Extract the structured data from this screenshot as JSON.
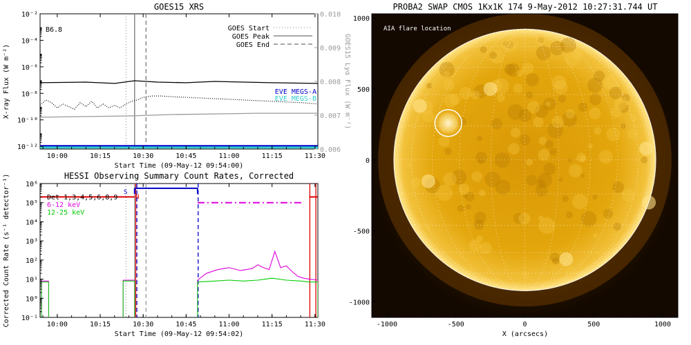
{
  "chart_data": [
    {
      "type": "line",
      "title": "GOES15 XRS",
      "xlabel": "Start Time (09-May-12 09:54:00)",
      "ylabel": "X-ray Flux (W m⁻²)",
      "ylabel_right": "GOES15 Lyα Flux (W m⁻²)",
      "x_ticks": [
        "10:00",
        "10:15",
        "10:30",
        "10:45",
        "11:00",
        "11:15",
        "11:30"
      ],
      "x_tick_minutes": [
        0,
        15,
        30,
        45,
        60,
        75,
        90
      ],
      "xlim_minutes": [
        -6,
        91
      ],
      "y_log_exponents": [
        -12,
        -10,
        -8,
        -6,
        -4,
        -2
      ],
      "y_tick_labels": [
        "10⁻¹²",
        "10⁻¹⁰",
        "10⁻⁸",
        "10⁻⁶",
        "10⁻⁴",
        "10⁻²"
      ],
      "ylim_log": [
        -12.2,
        -2
      ],
      "y_right_ticks": [
        "0.006",
        "0.007",
        "0.008",
        "0.009",
        "0.010"
      ],
      "y_right_values": [
        0.006,
        0.007,
        0.008,
        0.009,
        0.01
      ],
      "ylim_right": [
        0.006,
        0.01
      ],
      "class_label": "B6.8",
      "legend": [
        {
          "label": "GOES Start",
          "style": "dotted"
        },
        {
          "label": "GOES Peak",
          "style": "solid"
        },
        {
          "label": "GOES End",
          "style": "dashed"
        }
      ],
      "markers_minutes": {
        "start": 24,
        "peak": 27,
        "end": 31
      },
      "series": [
        {
          "name": "",
          "color": "#000000",
          "style": "solid",
          "x": [
            -6,
            10,
            20,
            27,
            35,
            45,
            55,
            65,
            75,
            91
          ],
          "log_y": [
            -7.2,
            -7.15,
            -7.25,
            -7.05,
            -7.15,
            -7.2,
            -7.1,
            -7.15,
            -7.2,
            -7.25
          ]
        },
        {
          "name": "",
          "color": "#000000",
          "style": "dotted",
          "x": [
            -6,
            -4,
            -2,
            0,
            2,
            4,
            6,
            8,
            10,
            12,
            14,
            16,
            18,
            20,
            22,
            24,
            26,
            28,
            30,
            33,
            36,
            40,
            45,
            50,
            55,
            60,
            65,
            70,
            75,
            80,
            85,
            88,
            91
          ],
          "log_y": [
            -8.9,
            -8.5,
            -8.7,
            -9.1,
            -8.8,
            -9.0,
            -9.2,
            -8.7,
            -9.0,
            -8.6,
            -9.1,
            -8.8,
            -9.1,
            -8.9,
            -9.1,
            -8.8,
            -8.6,
            -8.5,
            -8.3,
            -8.2,
            -8.2,
            -8.25,
            -8.3,
            -8.35,
            -8.4,
            -8.45,
            -8.5,
            -8.55,
            -8.6,
            -8.65,
            -8.7,
            -8.75,
            -8.8
          ]
        },
        {
          "name": "",
          "color": "#999999",
          "style": "solid",
          "x": [
            -6,
            10,
            25,
            40,
            55,
            70,
            91
          ],
          "log_y": [
            -9.8,
            -9.75,
            -9.7,
            -9.6,
            -9.55,
            -9.5,
            -9.5
          ]
        },
        {
          "name": "EVE MEGS-A",
          "color": "#0000cc",
          "style": "solid",
          "x": [
            -6,
            91
          ],
          "log_y": [
            -11.98,
            -11.98
          ]
        },
        {
          "name": "EVE MEGS-B",
          "color": "#33cccc",
          "style": "solid",
          "x": [
            -6,
            91
          ],
          "log_y": [
            -12.08,
            -12.08
          ]
        }
      ]
    },
    {
      "type": "line",
      "title": "HESSI Observing Summary Count Rates, Corrected",
      "xlabel": "Start Time (09-May-12 09:54:02)",
      "ylabel": "Corrected Count Rate (s⁻¹ detector⁻¹)",
      "x_ticks": [
        "10:00",
        "10:15",
        "10:30",
        "10:45",
        "11:00",
        "11:15",
        "11:30"
      ],
      "x_tick_minutes": [
        0,
        15,
        30,
        45,
        60,
        75,
        90
      ],
      "xlim_minutes": [
        -6,
        91
      ],
      "y_log_exponents": [
        -1,
        0,
        1,
        2,
        3,
        4,
        5,
        6
      ],
      "y_tick_labels": [
        "10⁻¹",
        "10⁰",
        "10¹",
        "10²",
        "10³",
        "10⁴",
        "10⁵",
        "10⁶"
      ],
      "ylim_log": [
        -1,
        6
      ],
      "legend": [
        {
          "label": "Det 1,3,4,5,6,8,9",
          "color": "#000000"
        },
        {
          "label": "6-12 keV",
          "color": "#dd00dd"
        },
        {
          "label": "12-25 keV",
          "color": "#00cc00"
        }
      ],
      "flags": [
        {
          "label": "S",
          "color": "#0000cc"
        },
        {
          "label": "N",
          "color": "#dd0000"
        }
      ],
      "series": [
        {
          "name": "6-12 keV",
          "color": "#dd00dd",
          "style": "solid",
          "x": [
            -5.5,
            -3,
            23,
            27,
            49,
            52,
            56,
            60,
            64,
            68,
            70,
            72,
            74,
            76,
            78,
            80,
            82,
            84,
            86,
            88,
            91
          ],
          "log_y": [
            0.9,
            0.9,
            0.95,
            0.95,
            0.95,
            1.3,
            1.5,
            1.6,
            1.45,
            1.55,
            1.75,
            1.6,
            1.5,
            2.45,
            1.6,
            1.7,
            1.4,
            1.15,
            1.05,
            1.0,
            0.95
          ],
          "gaps_after_index": [
            1,
            3
          ]
        },
        {
          "name": "12-25 keV",
          "color": "#00cc00",
          "style": "solid",
          "x": [
            -5.5,
            -3,
            23,
            27,
            49,
            55,
            60,
            65,
            70,
            75,
            80,
            85,
            88,
            91
          ],
          "log_y": [
            0.85,
            0.85,
            0.9,
            0.9,
            0.85,
            0.9,
            0.95,
            0.9,
            0.95,
            1.05,
            0.95,
            0.9,
            0.85,
            0.85
          ],
          "gaps_after_index": [
            1,
            3
          ]
        },
        {
          "name": "attenuator",
          "color": "#dd0000",
          "style": "solid",
          "x": [
            -6,
            27
          ],
          "log_y": [
            5.3,
            5.3
          ]
        },
        {
          "name": "attenuator-2",
          "color": "#dd0000",
          "style": "solid",
          "x": [
            88,
            91
          ],
          "log_y": [
            5.3,
            5.3
          ]
        },
        {
          "name": "saa",
          "color": "#0000cc",
          "style": "solid",
          "x": [
            27,
            49
          ],
          "log_y": [
            5.75,
            5.75
          ]
        },
        {
          "name": "flare-flag",
          "color": "#dd00dd",
          "style": "dashdot",
          "x": [
            49,
            86
          ],
          "log_y": [
            5.0,
            5.0
          ]
        }
      ],
      "vlines": [
        {
          "x": 24,
          "color": "#999999",
          "style": "dotted"
        },
        {
          "x": 27,
          "color": "#999999",
          "style": "solid"
        },
        {
          "x": 31,
          "color": "#999999",
          "style": "dashed"
        },
        {
          "x": 27.4,
          "color": "#dd0000",
          "style": "solid"
        },
        {
          "x": 27.8,
          "color": "#0000cc",
          "style": "dashed"
        },
        {
          "x": 49.2,
          "color": "#0000cc",
          "style": "dashed"
        },
        {
          "x": 88.2,
          "color": "#dd0000",
          "style": "solid"
        },
        {
          "x": 90.3,
          "color": "#dd0000",
          "style": "solid"
        }
      ]
    },
    {
      "type": "image",
      "title": "PROBA2 SWAP CMOS 1Kx1K 174  9-May-2012 10:27:31.744 UT",
      "xlabel": "X (arcsecs)",
      "ylabel": "",
      "annotation": "AIA flare location",
      "x_ticks": [
        "-1000",
        "-500",
        "0",
        "500",
        "1000"
      ],
      "x_tick_values": [
        -1000,
        -500,
        0,
        500,
        1000
      ],
      "y_ticks": [
        "-1000",
        "-500",
        "0",
        "500",
        "1000"
      ],
      "y_tick_values": [
        -1000,
        -500,
        0,
        500,
        1000
      ],
      "xlim": [
        -1110,
        1110
      ],
      "ylim": [
        -1110,
        1030
      ],
      "sun_radius_arcsec": 950,
      "flare_location": {
        "x": -555,
        "y": 260,
        "radius": 130
      },
      "colors": {
        "background": "#1a0c00",
        "disk": "#e6a30a",
        "limb": "#ffe070"
      }
    }
  ]
}
